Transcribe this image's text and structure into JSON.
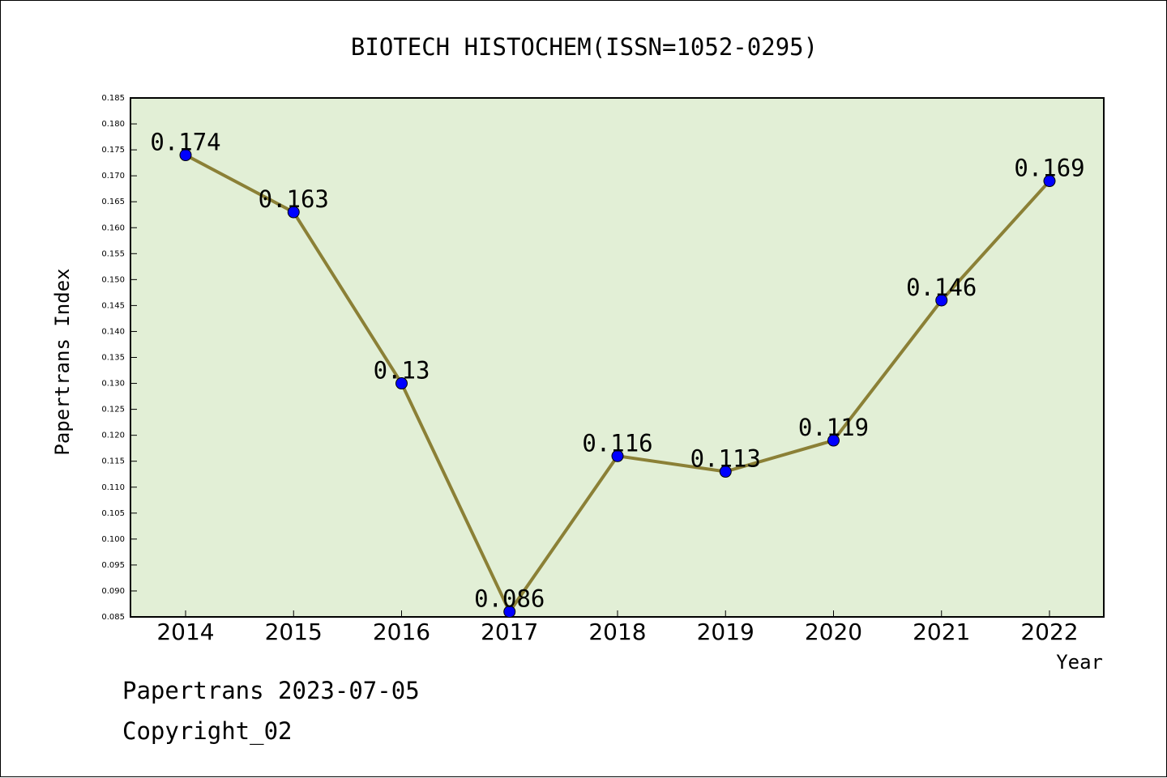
{
  "chart_data": {
    "type": "line",
    "title": "BIOTECH HISTOCHEM(ISSN=1052-0295)",
    "xlabel": "Year",
    "ylabel": "Papertrans Index",
    "categories": [
      "2014",
      "2015",
      "2016",
      "2017",
      "2018",
      "2019",
      "2020",
      "2021",
      "2022"
    ],
    "values": [
      0.174,
      0.163,
      0.13,
      0.086,
      0.116,
      0.113,
      0.119,
      0.146,
      0.169
    ],
    "value_labels": [
      "0.174",
      "0.163",
      "0.13",
      "0.086",
      "0.116",
      "0.113",
      "0.119",
      "0.146",
      "0.169"
    ],
    "ylim": [
      0.085,
      0.185
    ],
    "yticks": [
      "0.085",
      "0.090",
      "0.095",
      "0.100",
      "0.105",
      "0.110",
      "0.115",
      "0.120",
      "0.125",
      "0.130",
      "0.135",
      "0.140",
      "0.145",
      "0.150",
      "0.155",
      "0.160",
      "0.165",
      "0.170",
      "0.175",
      "0.180",
      "0.185"
    ],
    "grid": false,
    "colors": {
      "plot_background": "#e2efd6",
      "line": "#8b8036",
      "marker": "#0000ff"
    }
  },
  "footer": {
    "line1": "Papertrans 2023-07-05",
    "line2": "Copyright_02"
  }
}
